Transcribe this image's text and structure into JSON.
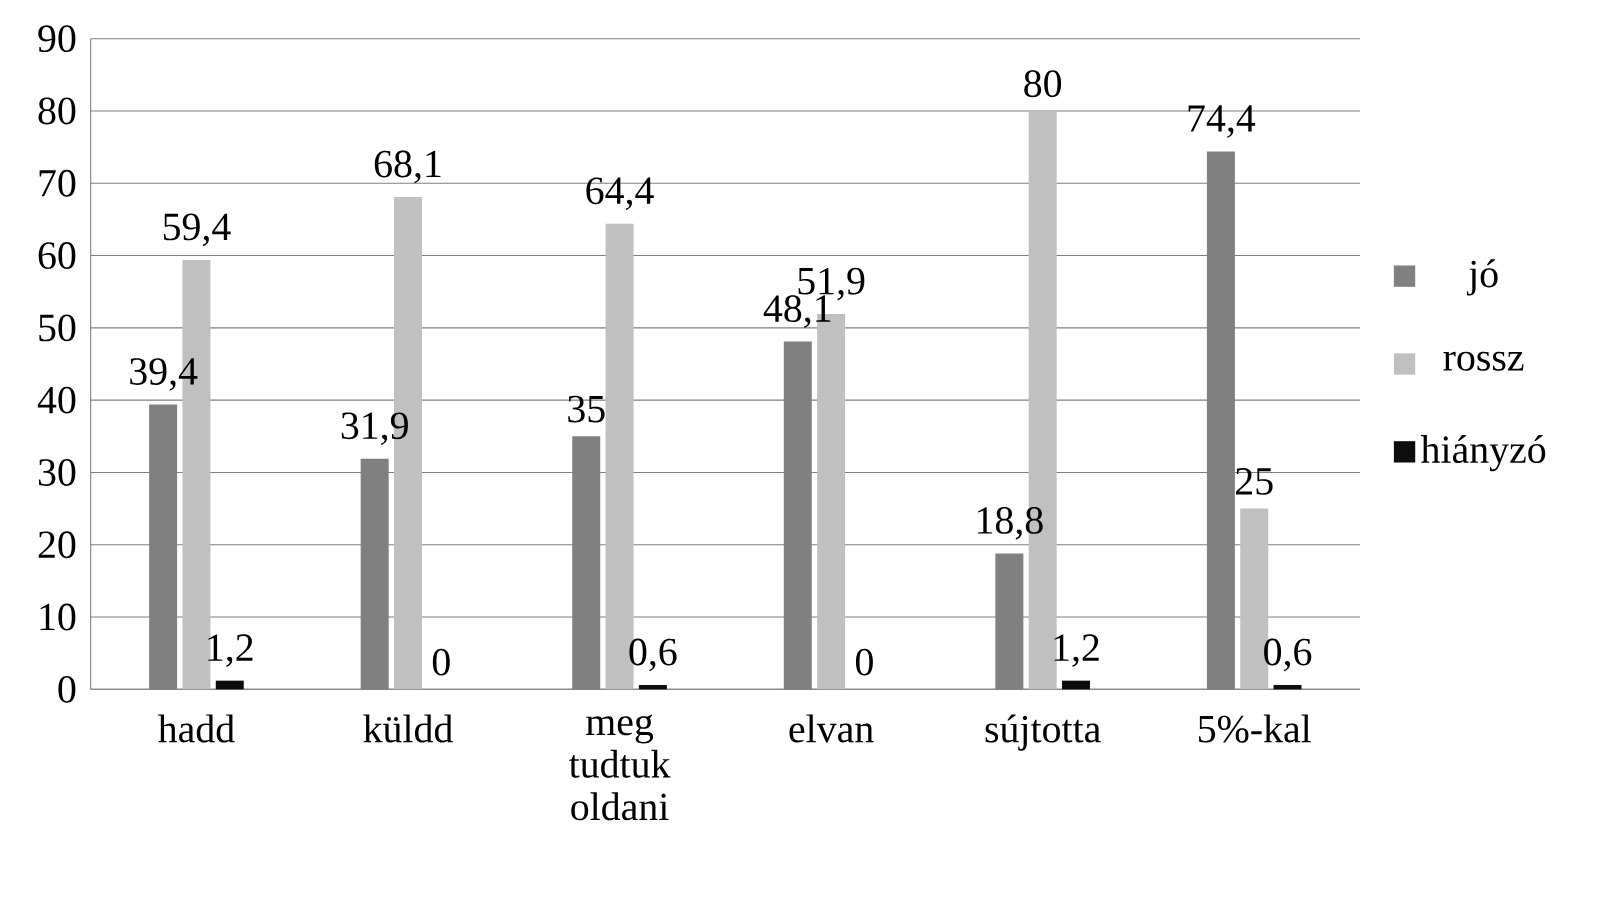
{
  "chart_data": {
    "type": "bar",
    "categories": [
      "hadd",
      "küldd",
      "meg tudtuk oldani",
      "elvan",
      "sújtotta",
      "5%-kal"
    ],
    "series": [
      {
        "name": "jó",
        "color": "#808080",
        "values": [
          39.4,
          31.9,
          35,
          48.1,
          18.8,
          74.4
        ],
        "value_labels": [
          "39,4",
          "31,9",
          "35",
          "48,1",
          "18,8",
          "74,4"
        ]
      },
      {
        "name": "rossz",
        "color": "#c0c0c0",
        "values": [
          59.4,
          68.1,
          64.4,
          51.9,
          80,
          25
        ],
        "value_labels": [
          "59,4",
          "68,1",
          "64,4",
          "51,9",
          "80",
          "25"
        ]
      },
      {
        "name": "hiányzó",
        "color": "#0d0d0d",
        "values": [
          1.2,
          0,
          0.6,
          0,
          1.2,
          0.6
        ],
        "value_labels": [
          "1,2",
          "0",
          "0,6",
          "0",
          "1,2",
          "0,6"
        ]
      }
    ],
    "ylim": [
      0,
      90
    ],
    "yticks": [
      0,
      10,
      20,
      30,
      40,
      50,
      60,
      70,
      80,
      90
    ],
    "grid": "y",
    "legend": "right"
  }
}
